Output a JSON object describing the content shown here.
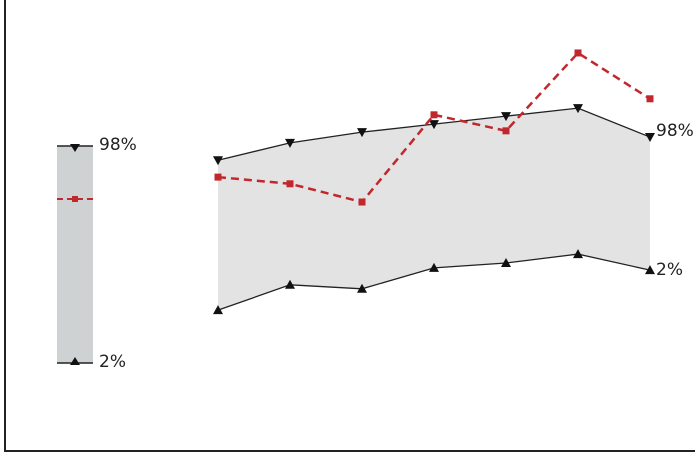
{
  "chart_data": {
    "type": "line",
    "categories": [
      null,
      null,
      null,
      null,
      null,
      null,
      null
    ],
    "ylim": [
      0,
      100
    ],
    "band_color": "#e3e3e3",
    "series": [
      {
        "name": "98%",
        "color": "#222222",
        "marker": "triangle-down",
        "values": [
          64.0,
          67.9,
          70.3,
          72.1,
          73.9,
          75.7,
          69.2
        ]
      },
      {
        "name": "2%",
        "color": "#222222",
        "marker": "triangle-up",
        "values": [
          30.3,
          36.0,
          35.1,
          39.8,
          40.9,
          42.9,
          39.3
        ]
      },
      {
        "color": "#c0282d",
        "marker": "square",
        "dashed": true,
        "values": [
          60.2,
          58.7,
          54.6,
          74.2,
          70.6,
          88.1,
          77.8
        ]
      }
    ]
  }
}
